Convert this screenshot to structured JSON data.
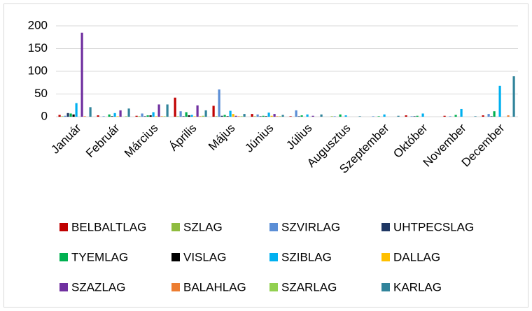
{
  "chart_data": {
    "type": "bar",
    "categories": [
      "Január",
      "Február",
      "Március",
      "Április",
      "Május",
      "Június",
      "Július",
      "Augusztus",
      "Szeptember",
      "Október",
      "November",
      "December"
    ],
    "series": [
      {
        "name": "BELBALTLAG",
        "color": "#c00000",
        "values": [
          4,
          3,
          2,
          42,
          24,
          6,
          1,
          0,
          0,
          3,
          2,
          3
        ]
      },
      {
        "name": "SZLAG",
        "color": "#8fbc3f",
        "values": [
          1,
          0,
          1,
          1,
          1,
          1,
          0,
          1,
          0,
          0,
          0,
          0
        ]
      },
      {
        "name": "SZVIRLAG",
        "color": "#5b8ed6",
        "values": [
          2,
          1,
          7,
          12,
          60,
          5,
          14,
          1,
          1,
          1,
          1,
          6
        ]
      },
      {
        "name": "UHTPECSLAG",
        "color": "#1f3864",
        "values": [
          8,
          0,
          1,
          1,
          2,
          1,
          1,
          0,
          0,
          1,
          0,
          1
        ]
      },
      {
        "name": "TYEMLAG",
        "color": "#00b050",
        "values": [
          7,
          5,
          3,
          10,
          4,
          2,
          3,
          5,
          1,
          2,
          4,
          12
        ]
      },
      {
        "name": "VISLAG",
        "color": "#000000",
        "values": [
          5,
          1,
          3,
          3,
          1,
          1,
          0,
          0,
          0,
          0,
          0,
          0
        ]
      },
      {
        "name": "SZIBLAG",
        "color": "#00b0f0",
        "values": [
          30,
          8,
          10,
          4,
          13,
          9,
          5,
          3,
          5,
          7,
          17,
          68
        ]
      },
      {
        "name": "DALLAG",
        "color": "#ffc000",
        "values": [
          0,
          1,
          1,
          1,
          6,
          2,
          0,
          0,
          0,
          0,
          0,
          0
        ]
      },
      {
        "name": "SZAZLAG",
        "color": "#7030a0",
        "values": [
          185,
          14,
          27,
          25,
          2,
          6,
          2,
          0,
          0,
          0,
          0,
          0
        ]
      },
      {
        "name": "BALAHLAG",
        "color": "#ed7d31",
        "values": [
          1,
          0,
          1,
          1,
          1,
          1,
          0,
          0,
          0,
          0,
          0,
          3
        ]
      },
      {
        "name": "SZARLAG",
        "color": "#92d050",
        "values": [
          0,
          1,
          1,
          2,
          1,
          1,
          0,
          0,
          0,
          0,
          0,
          0
        ]
      },
      {
        "name": "KARLAG",
        "color": "#31849b",
        "values": [
          21,
          18,
          27,
          14,
          6,
          4,
          5,
          1,
          2,
          0,
          1,
          89
        ]
      }
    ],
    "ylim": [
      0,
      200
    ],
    "yticks": [
      0,
      50,
      100,
      150,
      200
    ],
    "grid": true,
    "legend": "bottom"
  }
}
